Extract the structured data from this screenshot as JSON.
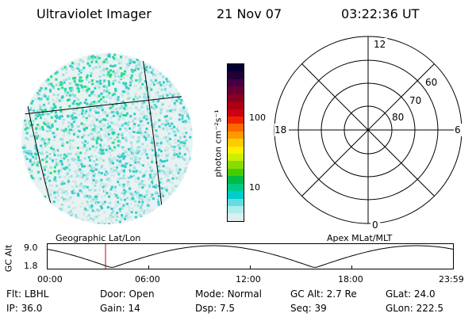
{
  "header": {
    "title": "Ultraviolet Imager",
    "date": "21 Nov 07",
    "time": "03:22:36 UT"
  },
  "colorbar": {
    "label": "photon cm⁻²s⁻¹",
    "ticks": [
      "100",
      "10"
    ],
    "colors": [
      "#000033",
      "#220033",
      "#440044",
      "#660033",
      "#880022",
      "#aa0011",
      "#cc0011",
      "#ee2200",
      "#ff6600",
      "#ff9900",
      "#ffcc00",
      "#ffee00",
      "#ccee00",
      "#88dd00",
      "#44cc00",
      "#00bb44",
      "#00cc88",
      "#00cccc",
      "#66dddd",
      "#aaeeee",
      "#ddeeee"
    ]
  },
  "polar_plot": {
    "mlt_labels": {
      "top": "12",
      "left": "18",
      "right": "6",
      "bottom": "0"
    },
    "lat_labels": [
      "60",
      "70",
      "80"
    ]
  },
  "map_labels": {
    "left": "Geographic Lat/Lon",
    "right": "Apex MLat/MLT"
  },
  "altitude_panel": {
    "ylabel": "GC Alt",
    "y_ticks": [
      "9.0",
      "1.8"
    ],
    "x_ticks": [
      "00:00",
      "06:00",
      "12:00",
      "18:00",
      "23:59"
    ]
  },
  "info": {
    "row1": [
      {
        "label": "Flt:",
        "value": "LBHL"
      },
      {
        "label": "Door:",
        "value": "Open"
      },
      {
        "label": "Mode:",
        "value": "Normal"
      },
      {
        "label": "GC Alt:",
        "value": "2.7 Re"
      },
      {
        "label": "GLat:",
        "value": "24.0"
      }
    ],
    "row2": [
      {
        "label": "IP:",
        "value": "36.0"
      },
      {
        "label": "Gain:",
        "value": "14"
      },
      {
        "label": "Dsp:",
        "value": "7.5"
      },
      {
        "label": "Seq:",
        "value": "39"
      },
      {
        "label": "GLon:",
        "value": "222.5"
      }
    ]
  }
}
